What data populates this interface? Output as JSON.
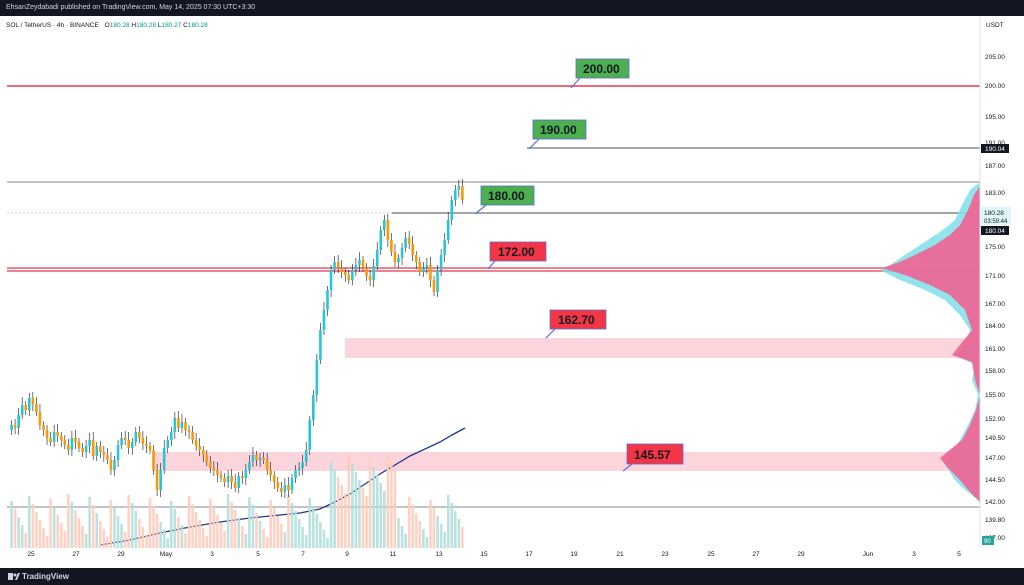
{
  "header": {
    "published_text": "EhsanZeydabadi published on TradingView.com, May 14, 2025 07:30 UTC+3:30"
  },
  "legend": {
    "symbol": "SOL / TetherUS · 4h · BINANCE",
    "o_label": "O",
    "o_value": "180.28",
    "h_label": "H",
    "h_value": "180.28",
    "l_label": "L",
    "l_value": "180.27",
    "c_label": "C",
    "c_value": "180.28"
  },
  "currency": "USDT",
  "footer": {
    "brand": "TradingView"
  },
  "price_axis": {
    "ticks": [
      "205.00",
      "200.00",
      "195.00",
      "191.00",
      "187.00",
      "183.00",
      "179.00",
      "175.00",
      "171.00",
      "167.00",
      "164.00",
      "161.00",
      "158.00",
      "155.00",
      "152.00",
      "149.50",
      "147.00",
      "144.50",
      "142.00",
      "139.80",
      "137.00"
    ],
    "badges": {
      "level_190": "190.04",
      "current_price": "180.28",
      "countdown": "03:59:44",
      "level_180": "180.04",
      "bottom": "90"
    }
  },
  "time_axis": [
    "25",
    "27",
    "29",
    "May",
    "3",
    "5",
    "7",
    "9",
    "11",
    "13",
    "15",
    "17",
    "19",
    "21",
    "23",
    "25",
    "27",
    "29",
    "Jun",
    "3",
    "5"
  ],
  "annotations": [
    {
      "label": "200.00",
      "kind": "resistance",
      "color": "#4caf50"
    },
    {
      "label": "190.00",
      "kind": "resistance",
      "color": "#4caf50"
    },
    {
      "label": "180.00",
      "kind": "resistance",
      "color": "#4caf50"
    },
    {
      "label": "172.00",
      "kind": "support",
      "color": "#f23645"
    },
    {
      "label": "162.70",
      "kind": "support-zone",
      "color": "#f23645"
    },
    {
      "label": "145.57",
      "kind": "support-zone",
      "color": "#f23645"
    }
  ],
  "colors": {
    "up": "#26c6da",
    "down": "#ff9800",
    "sma": "#1e3a8a",
    "zone": "#fcd5dc",
    "hline": "#e53950",
    "profile_up": "#80deea",
    "profile_down": "#f06292"
  }
}
